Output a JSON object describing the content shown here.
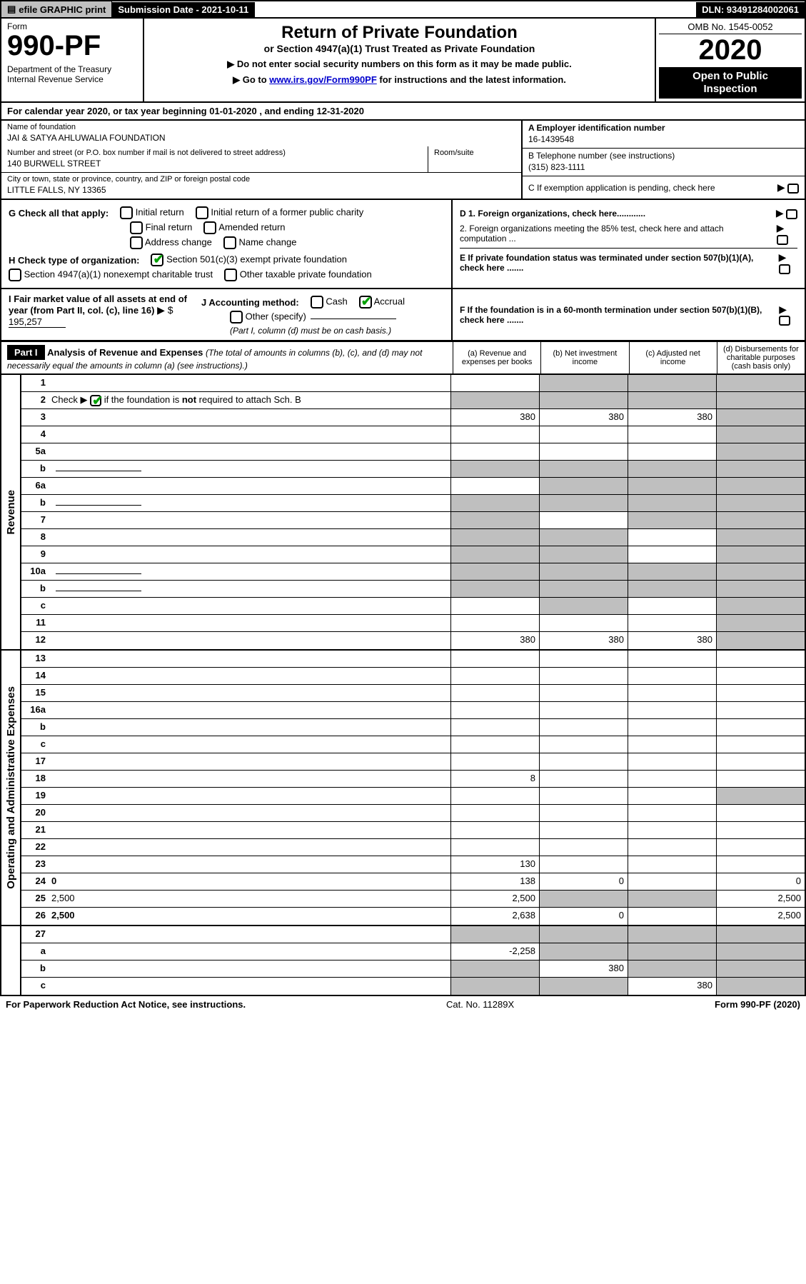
{
  "topbar": {
    "efile": "efile GRAPHIC print",
    "submission_date_label": "Submission Date - 2021-10-11",
    "dln": "DLN: 93491284002061"
  },
  "header": {
    "form_label": "Form",
    "form_number": "990-PF",
    "dept": "Department of the Treasury",
    "irs": "Internal Revenue Service",
    "title": "Return of Private Foundation",
    "subtitle": "or Section 4947(a)(1) Trust Treated as Private Foundation",
    "note1": "▶ Do not enter social security numbers on this form as it may be made public.",
    "note2_prefix": "▶ Go to ",
    "note2_link": "www.irs.gov/Form990PF",
    "note2_suffix": " for instructions and the latest information.",
    "omb": "OMB No. 1545-0052",
    "year": "2020",
    "open_public_l1": "Open to Public",
    "open_public_l2": "Inspection"
  },
  "cal_year": "For calendar year 2020, or tax year beginning 01-01-2020                          , and ending 12-31-2020",
  "entity": {
    "name_label": "Name of foundation",
    "name": "JAI & SATYA AHLUWALIA FOUNDATION",
    "addr_label": "Number and street (or P.O. box number if mail is not delivered to street address)",
    "addr": "140 BURWELL STREET",
    "room_label": "Room/suite",
    "city_label": "City or town, state or province, country, and ZIP or foreign postal code",
    "city": "LITTLE FALLS, NY  13365",
    "a_label": "A Employer identification number",
    "ein": "16-1439548",
    "b_label": "B Telephone number (see instructions)",
    "phone": "(315) 823-1111",
    "c_label": "C If exemption application is pending, check here"
  },
  "g": {
    "label": "G Check all that apply:",
    "initial": "Initial return",
    "initial_former": "Initial return of a former public charity",
    "final": "Final return",
    "amended": "Amended return",
    "addr_change": "Address change",
    "name_change": "Name change"
  },
  "h": {
    "label": "H Check type of organization:",
    "501c3": "Section 501(c)(3) exempt private foundation",
    "4947": "Section 4947(a)(1) nonexempt charitable trust",
    "other_tax": "Other taxable private foundation"
  },
  "d": {
    "d1": "D 1. Foreign organizations, check here............",
    "d2": "2. Foreign organizations meeting the 85% test, check here and attach computation ..."
  },
  "e": "E  If private foundation status was terminated under section 507(b)(1)(A), check here .......",
  "i": {
    "label": "I Fair market value of all assets at end of year (from Part II, col. (c), line 16)",
    "arrow": "▶ $",
    "value": "195,257"
  },
  "j": {
    "label": "J Accounting method:",
    "cash": "Cash",
    "accrual": "Accrual",
    "other": "Other (specify)",
    "note": "(Part I, column (d) must be on cash basis.)"
  },
  "f": "F  If the foundation is in a 60-month termination under section 507(b)(1)(B), check here .......",
  "part1": {
    "badge": "Part I",
    "title": "Analysis of Revenue and Expenses",
    "title_note": " (The total of amounts in columns (b), (c), and (d) may not necessarily equal the amounts in column (a) (see instructions).)",
    "col_a": "(a)  Revenue and expenses per books",
    "col_b": "(b)  Net investment income",
    "col_c": "(c)  Adjusted net income",
    "col_d": "(d)  Disbursements for charitable purposes (cash basis only)"
  },
  "side_labels": {
    "revenue": "Revenue",
    "expenses": "Operating and Administrative Expenses"
  },
  "rows": [
    {
      "n": "1",
      "d": "",
      "a": "",
      "b": "",
      "c": "",
      "grey_a": false,
      "grey_b": true,
      "grey_c": true,
      "grey_d": true
    },
    {
      "n": "2",
      "d": "",
      "a": "",
      "b": "",
      "c": "",
      "grey_a": true,
      "grey_b": true,
      "grey_c": true,
      "grey_d": true,
      "bold_not": true
    },
    {
      "n": "3",
      "d": "",
      "a": "380",
      "b": "380",
      "c": "380",
      "grey_d": true
    },
    {
      "n": "4",
      "d": "",
      "a": "",
      "b": "",
      "c": "",
      "grey_d": true
    },
    {
      "n": "5a",
      "d": "",
      "a": "",
      "b": "",
      "c": "",
      "grey_d": true
    },
    {
      "n": "b",
      "d": "",
      "a": "",
      "b": "",
      "c": "",
      "grey_a": true,
      "grey_b": true,
      "grey_c": true,
      "grey_d": true,
      "inline": true
    },
    {
      "n": "6a",
      "d": "",
      "a": "",
      "b": "",
      "c": "",
      "grey_b": true,
      "grey_c": true,
      "grey_d": true
    },
    {
      "n": "b",
      "d": "",
      "a": "",
      "b": "",
      "c": "",
      "grey_a": true,
      "grey_b": true,
      "grey_c": true,
      "grey_d": true,
      "inline": true
    },
    {
      "n": "7",
      "d": "",
      "a": "",
      "b": "",
      "c": "",
      "grey_a": true,
      "grey_c": true,
      "grey_d": true
    },
    {
      "n": "8",
      "d": "",
      "a": "",
      "b": "",
      "c": "",
      "grey_a": true,
      "grey_b": true,
      "grey_d": true
    },
    {
      "n": "9",
      "d": "",
      "a": "",
      "b": "",
      "c": "",
      "grey_a": true,
      "grey_b": true,
      "grey_d": true
    },
    {
      "n": "10a",
      "d": "",
      "a": "",
      "b": "",
      "c": "",
      "grey_a": true,
      "grey_b": true,
      "grey_c": true,
      "grey_d": true,
      "inline": true
    },
    {
      "n": "b",
      "d": "",
      "a": "",
      "b": "",
      "c": "",
      "grey_a": true,
      "grey_b": true,
      "grey_c": true,
      "grey_d": true,
      "inline": true
    },
    {
      "n": "c",
      "d": "",
      "a": "",
      "b": "",
      "c": "",
      "grey_b": true,
      "grey_d": true
    },
    {
      "n": "11",
      "d": "",
      "a": "",
      "b": "",
      "c": "",
      "grey_d": true
    },
    {
      "n": "12",
      "d": "",
      "a": "380",
      "b": "380",
      "c": "380",
      "bold": true,
      "grey_d": true
    }
  ],
  "exp_rows": [
    {
      "n": "13",
      "d": "",
      "a": "",
      "b": "",
      "c": ""
    },
    {
      "n": "14",
      "d": "",
      "a": "",
      "b": "",
      "c": ""
    },
    {
      "n": "15",
      "d": "",
      "a": "",
      "b": "",
      "c": ""
    },
    {
      "n": "16a",
      "d": "",
      "a": "",
      "b": "",
      "c": ""
    },
    {
      "n": "b",
      "d": "",
      "a": "",
      "b": "",
      "c": ""
    },
    {
      "n": "c",
      "d": "",
      "a": "",
      "b": "",
      "c": ""
    },
    {
      "n": "17",
      "d": "",
      "a": "",
      "b": "",
      "c": ""
    },
    {
      "n": "18",
      "d": "",
      "a": "8",
      "b": "",
      "c": ""
    },
    {
      "n": "19",
      "d": "",
      "a": "",
      "b": "",
      "c": "",
      "grey_d": true
    },
    {
      "n": "20",
      "d": "",
      "a": "",
      "b": "",
      "c": ""
    },
    {
      "n": "21",
      "d": "",
      "a": "",
      "b": "",
      "c": ""
    },
    {
      "n": "22",
      "d": "",
      "a": "",
      "b": "",
      "c": ""
    },
    {
      "n": "23",
      "d": "",
      "a": "130",
      "b": "",
      "c": ""
    },
    {
      "n": "24",
      "d": "0",
      "a": "138",
      "b": "0",
      "c": "",
      "bold": true
    },
    {
      "n": "25",
      "d": "2,500",
      "a": "2,500",
      "b": "",
      "c": "",
      "grey_b": true,
      "grey_c": true
    },
    {
      "n": "26",
      "d": "2,500",
      "a": "2,638",
      "b": "0",
      "c": "",
      "bold": true
    }
  ],
  "final_rows": [
    {
      "n": "27",
      "d": "",
      "a": "",
      "b": "",
      "c": "",
      "grey_a": true,
      "grey_b": true,
      "grey_c": true,
      "grey_d": true
    },
    {
      "n": "a",
      "d": "",
      "a": "-2,258",
      "b": "",
      "c": "",
      "bold": true,
      "grey_b": true,
      "grey_c": true,
      "grey_d": true
    },
    {
      "n": "b",
      "d": "",
      "a": "",
      "b": "380",
      "c": "",
      "bold": true,
      "grey_a": true,
      "grey_c": true,
      "grey_d": true
    },
    {
      "n": "c",
      "d": "",
      "a": "",
      "b": "",
      "c": "380",
      "bold": true,
      "grey_a": true,
      "grey_b": true,
      "grey_d": true
    }
  ],
  "footer": {
    "left": "For Paperwork Reduction Act Notice, see instructions.",
    "center": "Cat. No. 11289X",
    "right": "Form 990-PF (2020)"
  }
}
